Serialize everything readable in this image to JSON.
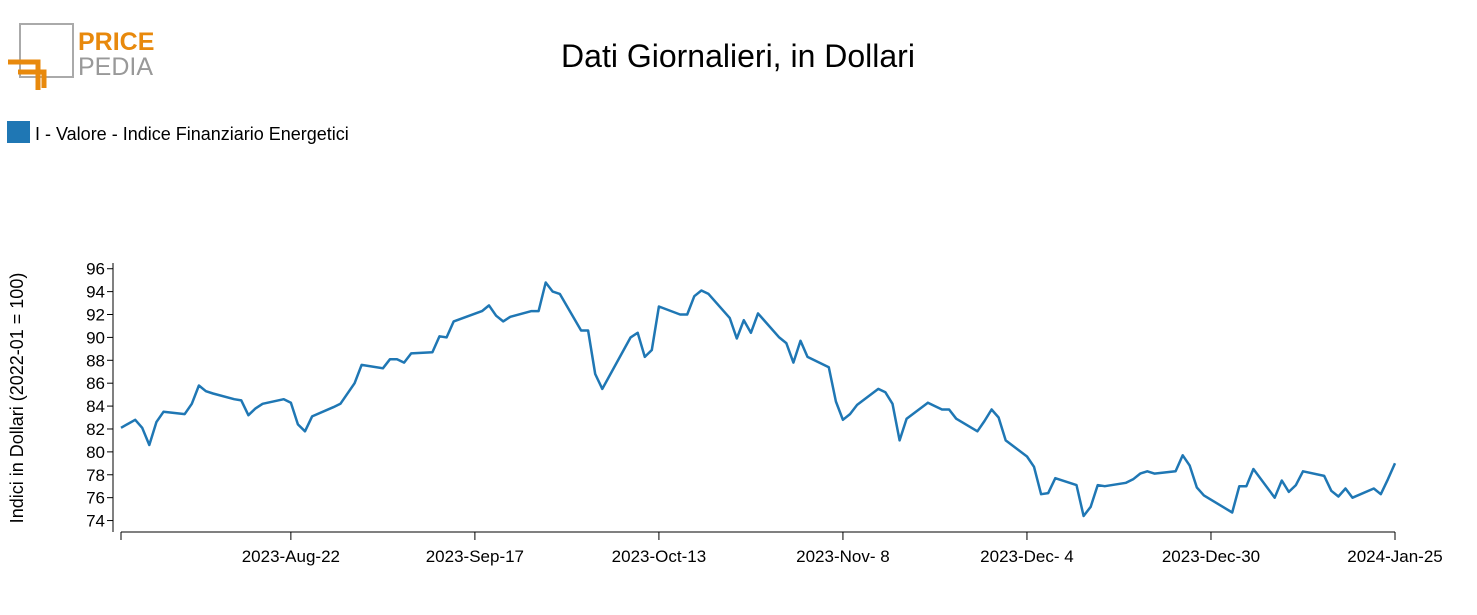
{
  "logo": {
    "top": "PRICE",
    "bottom": "PEDIA"
  },
  "chart_data": {
    "type": "line",
    "title": "Dati Giornalieri, in Dollari",
    "ylabel": "Indici in Dollari (2022-01 = 100)",
    "x": [
      "2023-07-29",
      "2023-07-31",
      "2023-08-01",
      "2023-08-02",
      "2023-08-03",
      "2023-08-04",
      "2023-08-07",
      "2023-08-08",
      "2023-08-09",
      "2023-08-10",
      "2023-08-11",
      "2023-08-14",
      "2023-08-15",
      "2023-08-16",
      "2023-08-17",
      "2023-08-18",
      "2023-08-21",
      "2023-08-22",
      "2023-08-23",
      "2023-08-24",
      "2023-08-25",
      "2023-08-28",
      "2023-08-29",
      "2023-08-31",
      "2023-09-01",
      "2023-09-04",
      "2023-09-05",
      "2023-09-06",
      "2023-09-07",
      "2023-09-08",
      "2023-09-11",
      "2023-09-12",
      "2023-09-13",
      "2023-09-14",
      "2023-09-18",
      "2023-09-19",
      "2023-09-20",
      "2023-09-21",
      "2023-09-22",
      "2023-09-25",
      "2023-09-26",
      "2023-09-27",
      "2023-09-28",
      "2023-09-29",
      "2023-10-02",
      "2023-10-03",
      "2023-10-04",
      "2023-10-05",
      "2023-10-09",
      "2023-10-10",
      "2023-10-11",
      "2023-10-12",
      "2023-10-13",
      "2023-10-16",
      "2023-10-17",
      "2023-10-18",
      "2023-10-19",
      "2023-10-20",
      "2023-10-23",
      "2023-10-24",
      "2023-10-25",
      "2023-10-26",
      "2023-10-27",
      "2023-10-30",
      "2023-10-31",
      "2023-11-01",
      "2023-11-02",
      "2023-11-03",
      "2023-11-06",
      "2023-11-07",
      "2023-11-08",
      "2023-11-09",
      "2023-11-10",
      "2023-11-13",
      "2023-11-14",
      "2023-11-15",
      "2023-11-16",
      "2023-11-17",
      "2023-11-20",
      "2023-11-21",
      "2023-11-22",
      "2023-11-23",
      "2023-11-24",
      "2023-11-27",
      "2023-11-28",
      "2023-11-29",
      "2023-11-30",
      "2023-12-01",
      "2023-12-04",
      "2023-12-05",
      "2023-12-06",
      "2023-12-07",
      "2023-12-08",
      "2023-12-11",
      "2023-12-12",
      "2023-12-13",
      "2023-12-14",
      "2023-12-15",
      "2023-12-18",
      "2023-12-19",
      "2023-12-20",
      "2023-12-21",
      "2023-12-22",
      "2023-12-25",
      "2023-12-26",
      "2023-12-27",
      "2023-12-28",
      "2023-12-29",
      "2024-01-02",
      "2024-01-03",
      "2024-01-04",
      "2024-01-05",
      "2024-01-08",
      "2024-01-09",
      "2024-01-10",
      "2024-01-11",
      "2024-01-12",
      "2024-01-15",
      "2024-01-16",
      "2024-01-17",
      "2024-01-18",
      "2024-01-19",
      "2024-01-22",
      "2024-01-23",
      "2024-01-24",
      "2024-01-25"
    ],
    "series": [
      {
        "name": "I - Valore - Indice Finanziario Energetici",
        "color": "#1f77b4",
        "values": [
          82.1,
          82.8,
          82.1,
          80.6,
          82.6,
          83.5,
          83.3,
          84.2,
          85.8,
          85.3,
          85.1,
          84.6,
          84.5,
          83.2,
          83.8,
          84.2,
          84.6,
          84.3,
          82.4,
          81.8,
          83.1,
          83.9,
          84.2,
          86.0,
          87.6,
          87.3,
          88.1,
          88.1,
          87.8,
          88.6,
          88.7,
          90.1,
          90.0,
          91.4,
          92.3,
          92.8,
          91.9,
          91.4,
          91.8,
          92.3,
          92.3,
          94.8,
          94.0,
          93.8,
          90.6,
          90.6,
          86.8,
          85.5,
          90.0,
          90.4,
          88.3,
          88.9,
          92.7,
          92.0,
          92.0,
          93.6,
          94.1,
          93.8,
          91.7,
          89.9,
          91.5,
          90.4,
          92.1,
          90.0,
          89.5,
          87.8,
          89.7,
          88.3,
          87.4,
          84.4,
          82.8,
          83.3,
          84.1,
          85.5,
          85.2,
          84.2,
          81.0,
          82.9,
          84.3,
          84.0,
          83.7,
          83.7,
          82.9,
          81.8,
          82.7,
          83.7,
          83.0,
          81.0,
          79.6,
          78.7,
          76.3,
          76.4,
          77.7,
          77.1,
          74.4,
          75.2,
          77.1,
          77.0,
          77.3,
          77.6,
          78.1,
          78.3,
          78.1,
          78.3,
          79.7,
          78.8,
          76.9,
          76.2,
          74.7,
          77.0,
          77.0,
          78.5,
          76.0,
          77.5,
          76.5,
          77.1,
          78.3,
          77.9,
          76.6,
          76.1,
          76.8,
          76.0,
          76.8,
          76.3,
          77.6,
          79.0
        ]
      }
    ],
    "xlim": [
      "2023-07-29",
      "2024-01-25"
    ],
    "xticks": [
      {
        "value": "2023-08-22",
        "label": "2023-Aug-22"
      },
      {
        "value": "2023-09-17",
        "label": "2023-Sep-17"
      },
      {
        "value": "2023-10-13",
        "label": "2023-Oct-13"
      },
      {
        "value": "2023-11-08",
        "label": "2023-Nov- 8"
      },
      {
        "value": "2023-12-04",
        "label": "2023-Dec- 4"
      },
      {
        "value": "2023-12-30",
        "label": "2023-Dec-30"
      },
      {
        "value": "2024-01-25",
        "label": "2024-Jan-25"
      }
    ],
    "ylim": [
      73,
      96.5
    ],
    "yticks": [
      74,
      76,
      78,
      80,
      82,
      84,
      86,
      88,
      90,
      92,
      94,
      96
    ],
    "legend": "top-left",
    "grid": false
  }
}
